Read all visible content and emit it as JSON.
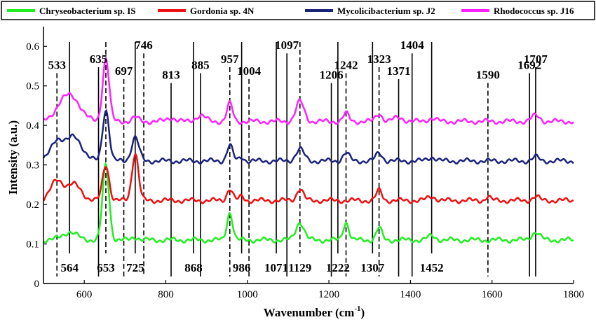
{
  "chart_data": {
    "type": "line",
    "xlabel": "Wavenumber (cm",
    "xlabel_sup": "-1",
    "xlabel_close": ")",
    "ylabel": "Intensity (a.u.)",
    "xlim": [
      500,
      1800
    ],
    "ylim": [
      0,
      0.65
    ],
    "xticks": [
      600,
      800,
      1000,
      1200,
      1400,
      1600,
      1800
    ],
    "yticks": [
      0,
      0.1,
      0.2,
      0.3,
      0.4,
      0.5,
      0.6
    ],
    "ytick_labels": [
      "0",
      "0.1",
      "0.2",
      "0.3",
      "0.4",
      "0.5",
      "0.6"
    ],
    "legend_position": "top",
    "series": [
      {
        "name": "Chryseobacterium sp. IS",
        "color": "#22ee22",
        "baseline": 0.11,
        "peaks": [
          [
            564,
            0.02,
            18
          ],
          [
            653,
            0.19,
            8
          ],
          [
            725,
            0.008,
            8
          ],
          [
            957,
            0.07,
            7
          ],
          [
            1129,
            0.045,
            10
          ],
          [
            1242,
            0.045,
            7
          ],
          [
            1323,
            0.03,
            7
          ],
          [
            1452,
            0.01,
            10
          ],
          [
            1707,
            0.02,
            10
          ]
        ]
      },
      {
        "name": "Gordonia sp. 4N",
        "color": "#ee1111",
        "baseline": 0.21,
        "peaks": [
          [
            533,
            0.05,
            15
          ],
          [
            575,
            0.04,
            18
          ],
          [
            653,
            0.09,
            8
          ],
          [
            725,
            0.12,
            8
          ],
          [
            957,
            0.03,
            7
          ],
          [
            986,
            0.01,
            6
          ],
          [
            1129,
            0.03,
            8
          ],
          [
            1323,
            0.025,
            7
          ],
          [
            1452,
            0.01,
            10
          ],
          [
            1590,
            0.01,
            6
          ],
          [
            1707,
            0.01,
            8
          ]
        ]
      },
      {
        "name": "Mycolicibacterium sp. J2",
        "color": "#1a237e",
        "baseline": 0.31,
        "peaks": [
          [
            533,
            0.05,
            15
          ],
          [
            575,
            0.06,
            20
          ],
          [
            653,
            0.13,
            8
          ],
          [
            725,
            0.06,
            9
          ],
          [
            957,
            0.04,
            7
          ],
          [
            986,
            0.01,
            6
          ],
          [
            1129,
            0.03,
            10
          ],
          [
            1242,
            0.02,
            8
          ],
          [
            1323,
            0.02,
            8
          ],
          [
            1452,
            0.01,
            10
          ],
          [
            1707,
            0.01,
            8
          ]
        ]
      },
      {
        "name": "Rhodococcus sp. J16",
        "color": "#ff22ff",
        "baseline": 0.41,
        "peaks": [
          [
            545,
            0.04,
            18
          ],
          [
            575,
            0.05,
            20
          ],
          [
            653,
            0.16,
            8
          ],
          [
            725,
            0.01,
            8
          ],
          [
            813,
            0.01,
            10
          ],
          [
            885,
            0.015,
            12
          ],
          [
            957,
            0.045,
            7
          ],
          [
            1129,
            0.05,
            10
          ],
          [
            1242,
            0.02,
            7
          ],
          [
            1323,
            0.02,
            8
          ],
          [
            1371,
            0.01,
            12
          ],
          [
            1452,
            0.008,
            10
          ],
          [
            1707,
            0.015,
            10
          ]
        ]
      }
    ],
    "peak_annotations": [
      {
        "label": "533",
        "x": 533,
        "style": "dashed",
        "position": "top"
      },
      {
        "label": "564",
        "x": 564,
        "style": "solid",
        "position": "bottom"
      },
      {
        "label": "635",
        "x": 635,
        "style": "solid",
        "position": "top"
      },
      {
        "label": "653",
        "x": 653,
        "style": "dashed",
        "position": "bottom"
      },
      {
        "label": "697",
        "x": 697,
        "style": "dashed",
        "position": "top"
      },
      {
        "label": "725",
        "x": 725,
        "style": "solid",
        "position": "bottom"
      },
      {
        "label": "746",
        "x": 746,
        "style": "dashed",
        "position": "top"
      },
      {
        "label": "813",
        "x": 813,
        "style": "solid",
        "position": "top"
      },
      {
        "label": "868",
        "x": 868,
        "style": "solid",
        "position": "bottom"
      },
      {
        "label": "885",
        "x": 885,
        "style": "solid",
        "position": "top"
      },
      {
        "label": "957",
        "x": 957,
        "style": "dashed",
        "position": "top"
      },
      {
        "label": "986",
        "x": 986,
        "style": "solid",
        "position": "bottom"
      },
      {
        "label": "1004",
        "x": 1004,
        "style": "dashed",
        "position": "top"
      },
      {
        "label": "1071",
        "x": 1071,
        "style": "solid",
        "position": "bottom"
      },
      {
        "label": "1097",
        "x": 1097,
        "style": "solid",
        "position": "top"
      },
      {
        "label": "1129",
        "x": 1129,
        "style": "dashed",
        "position": "bottom"
      },
      {
        "label": "1206",
        "x": 1206,
        "style": "solid",
        "position": "top"
      },
      {
        "label": "1222",
        "x": 1222,
        "style": "solid",
        "position": "bottom"
      },
      {
        "label": "1242",
        "x": 1242,
        "style": "dashed",
        "position": "top"
      },
      {
        "label": "1307",
        "x": 1307,
        "style": "solid",
        "position": "bottom"
      },
      {
        "label": "1323",
        "x": 1323,
        "style": "dashed",
        "position": "top"
      },
      {
        "label": "1371",
        "x": 1371,
        "style": "solid",
        "position": "top"
      },
      {
        "label": "1404",
        "x": 1404,
        "style": "solid",
        "position": "top"
      },
      {
        "label": "1452",
        "x": 1452,
        "style": "solid",
        "position": "bottom"
      },
      {
        "label": "1590",
        "x": 1590,
        "style": "dashed",
        "position": "top"
      },
      {
        "label": "1692",
        "x": 1692,
        "style": "solid",
        "position": "top"
      },
      {
        "label": "1707",
        "x": 1707,
        "style": "solid",
        "position": "top"
      }
    ]
  }
}
